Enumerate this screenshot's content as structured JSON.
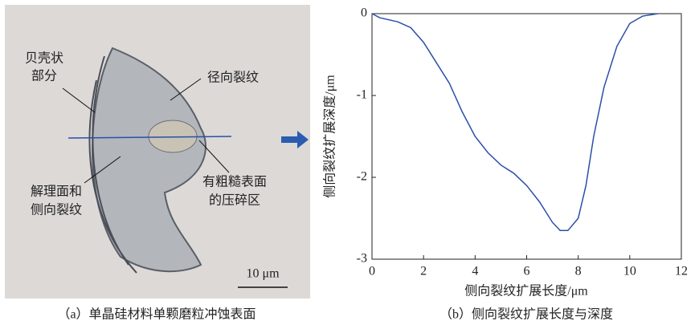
{
  "image": {
    "labels": [
      [
        "贝壳状",
        "部分"
      ],
      [
        "径向裂纹"
      ],
      [
        "解理面和",
        "侧向裂纹"
      ],
      [
        "有粗糙表面",
        "的压碎区"
      ]
    ],
    "scale_bar": "10 μm",
    "caption": "（a）单晶硅材料单颗磨粒冲蚀表面"
  },
  "chart_data": {
    "type": "line",
    "caption": "（b）侧向裂纹扩展长度与深度",
    "xlabel": "侧向裂纹扩展长度/μm",
    "ylabel": "侧向裂纹扩展深度/μm",
    "x": [
      0,
      0.3,
      1,
      1.5,
      2,
      2.5,
      3,
      3.5,
      4,
      4.5,
      5,
      5.5,
      6,
      6.5,
      7,
      7.3,
      7.6,
      8,
      8.3,
      8.6,
      9,
      9.5,
      10,
      10.5,
      11.1
    ],
    "values": [
      0,
      -0.05,
      -0.1,
      -0.17,
      -0.35,
      -0.6,
      -0.85,
      -1.2,
      -1.5,
      -1.7,
      -1.85,
      -1.95,
      -2.1,
      -2.3,
      -2.55,
      -2.65,
      -2.65,
      -2.5,
      -2.1,
      -1.5,
      -0.9,
      -0.4,
      -0.12,
      -0.03,
      0
    ],
    "color": "#2b4fa8",
    "xlim": [
      0,
      12
    ],
    "ylim": [
      -3,
      0
    ],
    "xticks": [
      0,
      2,
      4,
      6,
      8,
      10,
      12
    ],
    "yticks": [
      -3,
      -2,
      -1,
      0
    ]
  }
}
